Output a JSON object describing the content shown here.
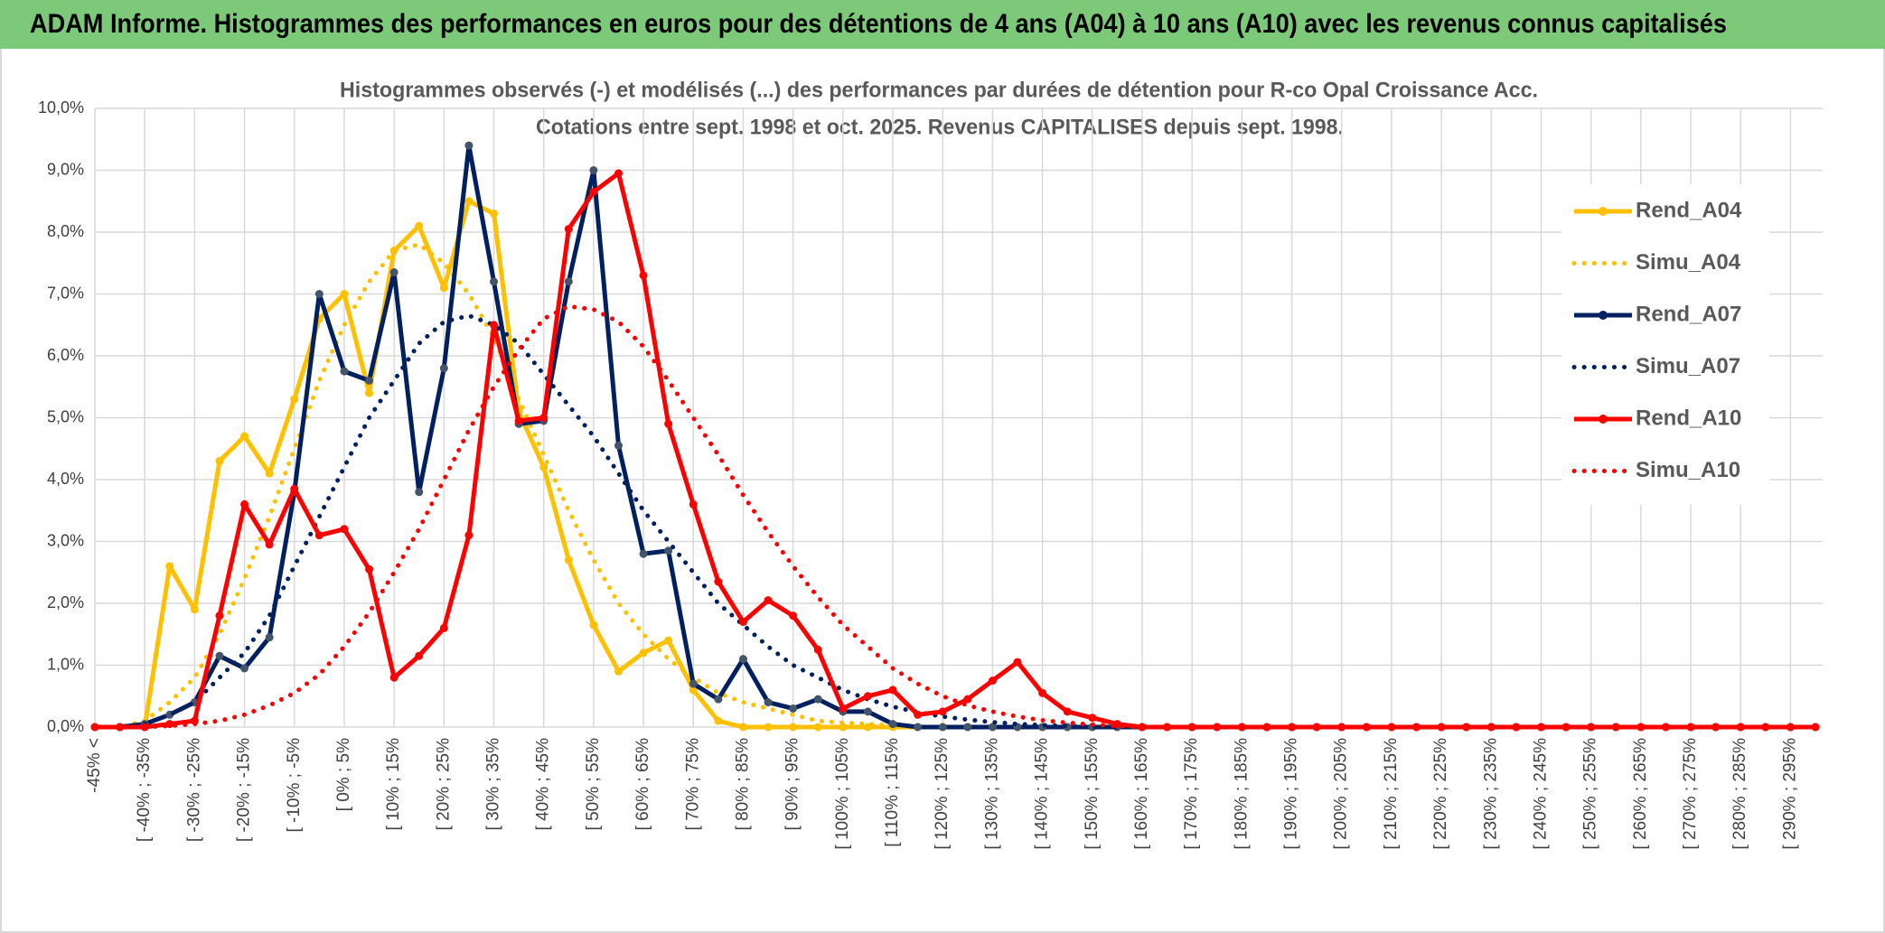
{
  "chart_data": {
    "type": "line",
    "header": "ADAM Informe. Histogrammes des performances en euros pour des détentions de 4 ans (A04) à 10 ans (A10) avec les revenus connus capitalisés",
    "title": "Histogrammes observés (-) et modélisés (...) des performances par durées de détention pour R-co Opal Croissance Acc.",
    "subtitle": "Cotations entre sept. 1998 et oct. 2025. Revenus CAPITALISES depuis sept. 1998.",
    "categories": [
      "-45% <",
      null,
      "[ -40% ; -35%",
      null,
      "[ -30% ; -25%",
      null,
      "[ -20% ; -15%",
      null,
      "[ -10% ; -5%",
      null,
      "[ 0% ; 5%",
      null,
      "[ 10% ; 15%",
      null,
      "[ 20% ; 25%",
      null,
      "[ 30% ; 35%",
      null,
      "[ 40% ; 45%",
      null,
      "[ 50% ; 55%",
      null,
      "[ 60% ; 65%",
      null,
      "[ 70% ; 75%",
      null,
      "[ 80% ; 85%",
      null,
      "[ 90% ; 95%",
      null,
      "[ 100% ; 105%",
      null,
      "[ 110% ; 115%",
      null,
      "[ 120% ; 125%",
      null,
      "[ 130% ; 135%",
      null,
      "[ 140% ; 145%",
      null,
      "[ 150% ; 155%",
      null,
      "[ 160% ; 165%",
      null,
      "[ 170% ; 175%",
      null,
      "[ 180% ; 185%",
      null,
      "[ 190% ; 195%",
      null,
      "[ 200% ; 205%",
      null,
      "[ 210% ; 215%",
      null,
      "[ 220% ; 225%",
      null,
      "[ 230% ; 235%",
      null,
      "[ 240% ; 245%",
      null,
      "[ 250% ; 255%",
      null,
      "[ 260% ; 265%",
      null,
      "[ 270% ; 275%",
      null,
      "[ 280% ; 285%",
      null,
      "[ 290% ; 295%",
      null
    ],
    "series": [
      {
        "name": "Rend_A04",
        "color": "#ffc000",
        "line_style": "solid",
        "marker": true,
        "values": [
          0,
          0,
          0,
          2.6,
          1.9,
          4.3,
          4.7,
          4.1,
          5.3,
          6.6,
          7.0,
          5.4,
          7.7,
          8.1,
          7.1,
          8.5,
          8.3,
          5.1,
          4.2,
          2.7,
          1.65,
          0.9,
          1.2,
          1.4,
          0.6,
          0.1,
          0,
          0,
          0,
          0,
          0,
          0,
          0,
          0,
          0,
          0,
          0,
          0,
          0,
          0,
          0,
          0,
          0,
          0,
          0,
          0,
          0,
          0,
          0,
          0,
          0,
          0,
          0,
          0,
          0,
          0,
          0,
          0,
          0,
          0,
          0,
          0,
          0,
          0,
          0,
          0,
          0,
          0,
          0,
          0
        ]
      },
      {
        "name": "Simu_A04",
        "color": "#ffc000",
        "line_style": "dotted",
        "marker": false,
        "values": [
          0,
          0,
          0.1,
          0.4,
          0.8,
          1.5,
          2.4,
          3.4,
          4.5,
          5.6,
          6.5,
          7.2,
          7.7,
          7.8,
          7.5,
          7.0,
          6.3,
          5.3,
          4.4,
          3.5,
          2.7,
          2.0,
          1.5,
          1.1,
          0.8,
          0.55,
          0.4,
          0.3,
          0.2,
          0.1,
          0.07,
          0.05,
          0.03,
          0,
          0,
          0,
          0,
          0,
          0,
          0,
          0,
          0,
          0,
          0,
          0,
          0,
          0,
          0,
          0,
          0,
          0,
          0,
          0,
          0,
          0,
          0,
          0,
          0,
          0,
          0,
          0,
          0,
          0,
          0,
          0,
          0,
          0,
          0,
          0,
          0
        ]
      },
      {
        "name": "Rend_A07",
        "color": "#002060",
        "line_style": "solid",
        "marker": true,
        "values": [
          0,
          0,
          0.05,
          0.2,
          0.4,
          1.15,
          0.95,
          1.45,
          3.8,
          7.0,
          5.75,
          5.6,
          7.35,
          3.8,
          5.8,
          9.4,
          7.2,
          4.9,
          4.95,
          7.2,
          9.0,
          4.55,
          2.8,
          2.85,
          0.7,
          0.45,
          1.1,
          0.4,
          0.3,
          0.45,
          0.25,
          0.25,
          0.05,
          0,
          0,
          0,
          0,
          0,
          0,
          0,
          0,
          0,
          0,
          0,
          0,
          0,
          0,
          0,
          0,
          0,
          0,
          0,
          0,
          0,
          0,
          0,
          0,
          0,
          0,
          0,
          0,
          0,
          0,
          0,
          0,
          0,
          0,
          0,
          0,
          0
        ]
      },
      {
        "name": "Simu_A07",
        "color": "#002060",
        "line_style": "dotted",
        "marker": false,
        "values": [
          0,
          0,
          0.05,
          0.2,
          0.4,
          0.8,
          1.2,
          1.8,
          2.6,
          3.4,
          4.2,
          5.0,
          5.6,
          6.2,
          6.55,
          6.65,
          6.5,
          6.2,
          5.7,
          5.2,
          4.7,
          4.1,
          3.5,
          3.0,
          2.5,
          2.0,
          1.65,
          1.3,
          1.0,
          0.8,
          0.6,
          0.45,
          0.33,
          0.24,
          0.17,
          0.12,
          0.08,
          0.05,
          0.03,
          0.02,
          0,
          0,
          0,
          0,
          0,
          0,
          0,
          0,
          0,
          0,
          0,
          0,
          0,
          0,
          0,
          0,
          0,
          0,
          0,
          0,
          0,
          0,
          0,
          0,
          0,
          0,
          0,
          0,
          0,
          0
        ]
      },
      {
        "name": "Rend_A10",
        "color": "#ff0000",
        "line_style": "solid",
        "marker": true,
        "values": [
          0,
          0,
          0,
          0.05,
          0.1,
          1.8,
          3.6,
          2.95,
          3.85,
          3.1,
          3.2,
          2.55,
          0.8,
          1.15,
          1.6,
          3.1,
          6.5,
          4.95,
          5.0,
          8.05,
          8.65,
          8.95,
          7.3,
          4.9,
          3.6,
          2.35,
          1.7,
          2.05,
          1.8,
          1.25,
          0.3,
          0.5,
          0.6,
          0.2,
          0.25,
          0.45,
          0.75,
          1.05,
          0.55,
          0.25,
          0.15,
          0.05,
          0,
          0,
          0,
          0,
          0,
          0,
          0,
          0,
          0,
          0,
          0,
          0,
          0,
          0,
          0,
          0,
          0,
          0,
          0,
          0,
          0,
          0,
          0,
          0,
          0,
          0,
          0,
          0
        ]
      },
      {
        "name": "Simu_A10",
        "color": "#ff0000",
        "line_style": "dotted",
        "marker": false,
        "values": [
          0,
          0,
          0,
          0.02,
          0.05,
          0.1,
          0.2,
          0.35,
          0.55,
          0.85,
          1.3,
          1.85,
          2.5,
          3.2,
          4.0,
          4.8,
          5.5,
          6.1,
          6.6,
          6.8,
          6.75,
          6.55,
          6.15,
          5.6,
          5.0,
          4.4,
          3.75,
          3.15,
          2.6,
          2.1,
          1.65,
          1.3,
          0.95,
          0.7,
          0.5,
          0.35,
          0.25,
          0.17,
          0.11,
          0.07,
          0.04,
          0.02,
          0,
          0,
          0,
          0,
          0,
          0,
          0,
          0,
          0,
          0,
          0,
          0,
          0,
          0,
          0,
          0,
          0,
          0,
          0,
          0,
          0,
          0,
          0,
          0,
          0,
          0,
          0,
          0
        ]
      }
    ],
    "ylim": [
      0,
      10
    ],
    "yticks": [
      {
        "value": 0,
        "label": "0,0%"
      },
      {
        "value": 1,
        "label": "1,0%"
      },
      {
        "value": 2,
        "label": "2,0%"
      },
      {
        "value": 3,
        "label": "3,0%"
      },
      {
        "value": 4,
        "label": "4,0%"
      },
      {
        "value": 5,
        "label": "5,0%"
      },
      {
        "value": 6,
        "label": "6,0%"
      },
      {
        "value": 7,
        "label": "7,0%"
      },
      {
        "value": 8,
        "label": "8,0%"
      },
      {
        "value": 9,
        "label": "9,0%"
      },
      {
        "value": 10,
        "label": "10,0%"
      }
    ],
    "grid": true,
    "legend": "right"
  }
}
